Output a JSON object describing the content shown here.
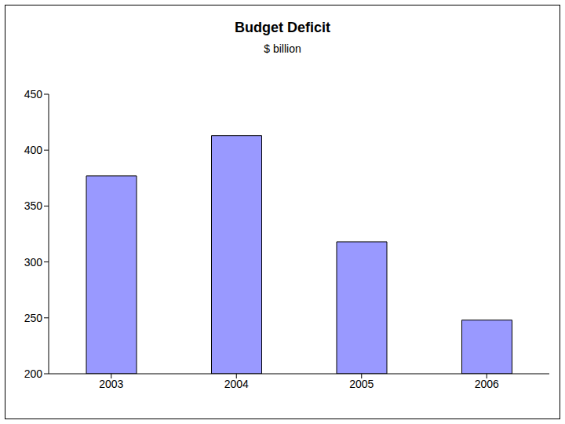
{
  "chart_data": {
    "type": "bar",
    "title": "Budget Deficit",
    "subtitle": "$ billion",
    "categories": [
      "2003",
      "2004",
      "2005",
      "2006"
    ],
    "values": [
      377,
      413,
      318,
      248
    ],
    "color": "#9999ff",
    "ylim": [
      200,
      450
    ],
    "yticks": [
      200,
      250,
      300,
      350,
      400,
      450
    ],
    "grid": false
  }
}
